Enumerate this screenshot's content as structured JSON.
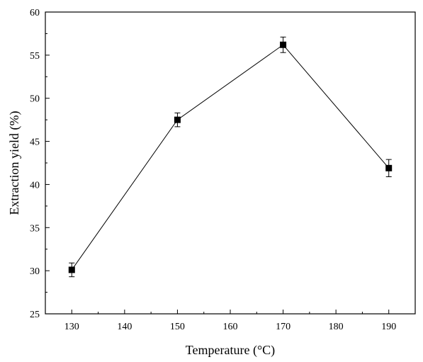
{
  "chart_data": {
    "type": "line",
    "xlabel": "Temperature (°C)",
    "ylabel": "Extraction yield (%)",
    "xlim": [
      125,
      195
    ],
    "ylim": [
      25,
      60
    ],
    "x_ticks": [
      130,
      140,
      150,
      160,
      170,
      180,
      190
    ],
    "y_ticks": [
      25,
      30,
      35,
      40,
      45,
      50,
      55,
      60
    ],
    "grid": false,
    "legend": "none",
    "series": [
      {
        "x": [
          130,
          150,
          170,
          190
        ],
        "y": [
          30.1,
          47.5,
          56.2,
          41.9
        ],
        "error": [
          0.8,
          0.8,
          0.9,
          1.0
        ],
        "marker": "square",
        "color": "#000000"
      }
    ]
  }
}
